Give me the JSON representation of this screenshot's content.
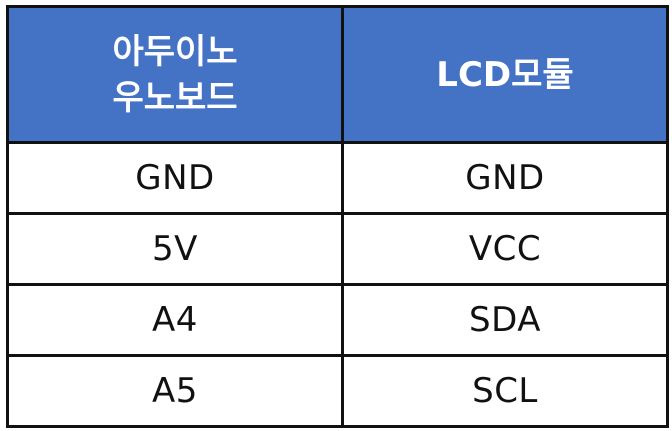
{
  "table": {
    "headers": {
      "arduino_line1": "아두이노",
      "arduino_line2": "우노보드",
      "lcd": "LCD모듈"
    },
    "rows": [
      {
        "arduino": "GND",
        "lcd": "GND"
      },
      {
        "arduino": "5V",
        "lcd": "VCC"
      },
      {
        "arduino": "A4",
        "lcd": "SDA"
      },
      {
        "arduino": "A5",
        "lcd": "SCL"
      }
    ],
    "colors": {
      "header_background": "#4472c4",
      "header_text": "#ffffff",
      "border": "#111111",
      "cell_text": "#111111"
    }
  }
}
